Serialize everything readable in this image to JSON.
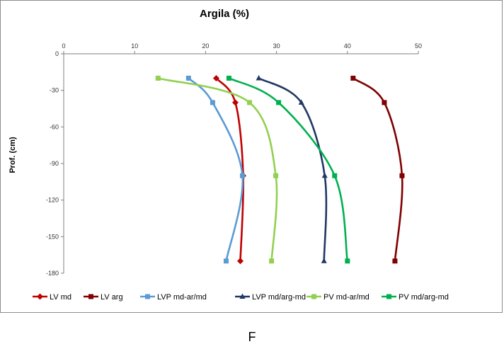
{
  "figure_label": "F",
  "chart_data": {
    "type": "line",
    "title": "Argila  (%)",
    "xlabel": "",
    "ylabel": "Prof. (cm)",
    "xlim": [
      0,
      50
    ],
    "ylim": [
      -180,
      0
    ],
    "x_ticks": [
      0,
      10,
      20,
      30,
      40,
      50
    ],
    "y_ticks": [
      0,
      -30,
      -60,
      -90,
      -120,
      -150,
      -180
    ],
    "x_axis_position": "top",
    "grid": false,
    "legend_position": "bottom",
    "series": [
      {
        "name": "LV md",
        "color": "#c00000",
        "marker": "diamond",
        "points": [
          [
            21.5,
            -20
          ],
          [
            24.2,
            -40
          ],
          [
            25.3,
            -100
          ],
          [
            24.9,
            -170
          ]
        ]
      },
      {
        "name": "LV arg",
        "color": "#7f0000",
        "marker": "square",
        "points": [
          [
            40.8,
            -20
          ],
          [
            45.2,
            -40
          ],
          [
            47.7,
            -100
          ],
          [
            46.7,
            -170
          ]
        ]
      },
      {
        "name": "LVP md-ar/md",
        "color": "#5b9bd5",
        "marker": "square",
        "points": [
          [
            17.6,
            -20
          ],
          [
            21.0,
            -40
          ],
          [
            25.2,
            -100
          ],
          [
            22.9,
            -170
          ]
        ]
      },
      {
        "name": "LVP md/arg-md",
        "color": "#1f3864",
        "marker": "triangle",
        "points": [
          [
            27.5,
            -20
          ],
          [
            33.5,
            -40
          ],
          [
            36.8,
            -100
          ],
          [
            36.7,
            -170
          ]
        ]
      },
      {
        "name": "PV md-ar/md",
        "color": "#92d050",
        "marker": "square",
        "points": [
          [
            13.3,
            -20
          ],
          [
            26.2,
            -40
          ],
          [
            29.9,
            -100
          ],
          [
            29.3,
            -170
          ]
        ]
      },
      {
        "name": "PV md/arg-md",
        "color": "#00b050",
        "marker": "square",
        "points": [
          [
            23.3,
            -20
          ],
          [
            30.3,
            -40
          ],
          [
            38.2,
            -100
          ],
          [
            40.0,
            -170
          ]
        ]
      }
    ]
  }
}
